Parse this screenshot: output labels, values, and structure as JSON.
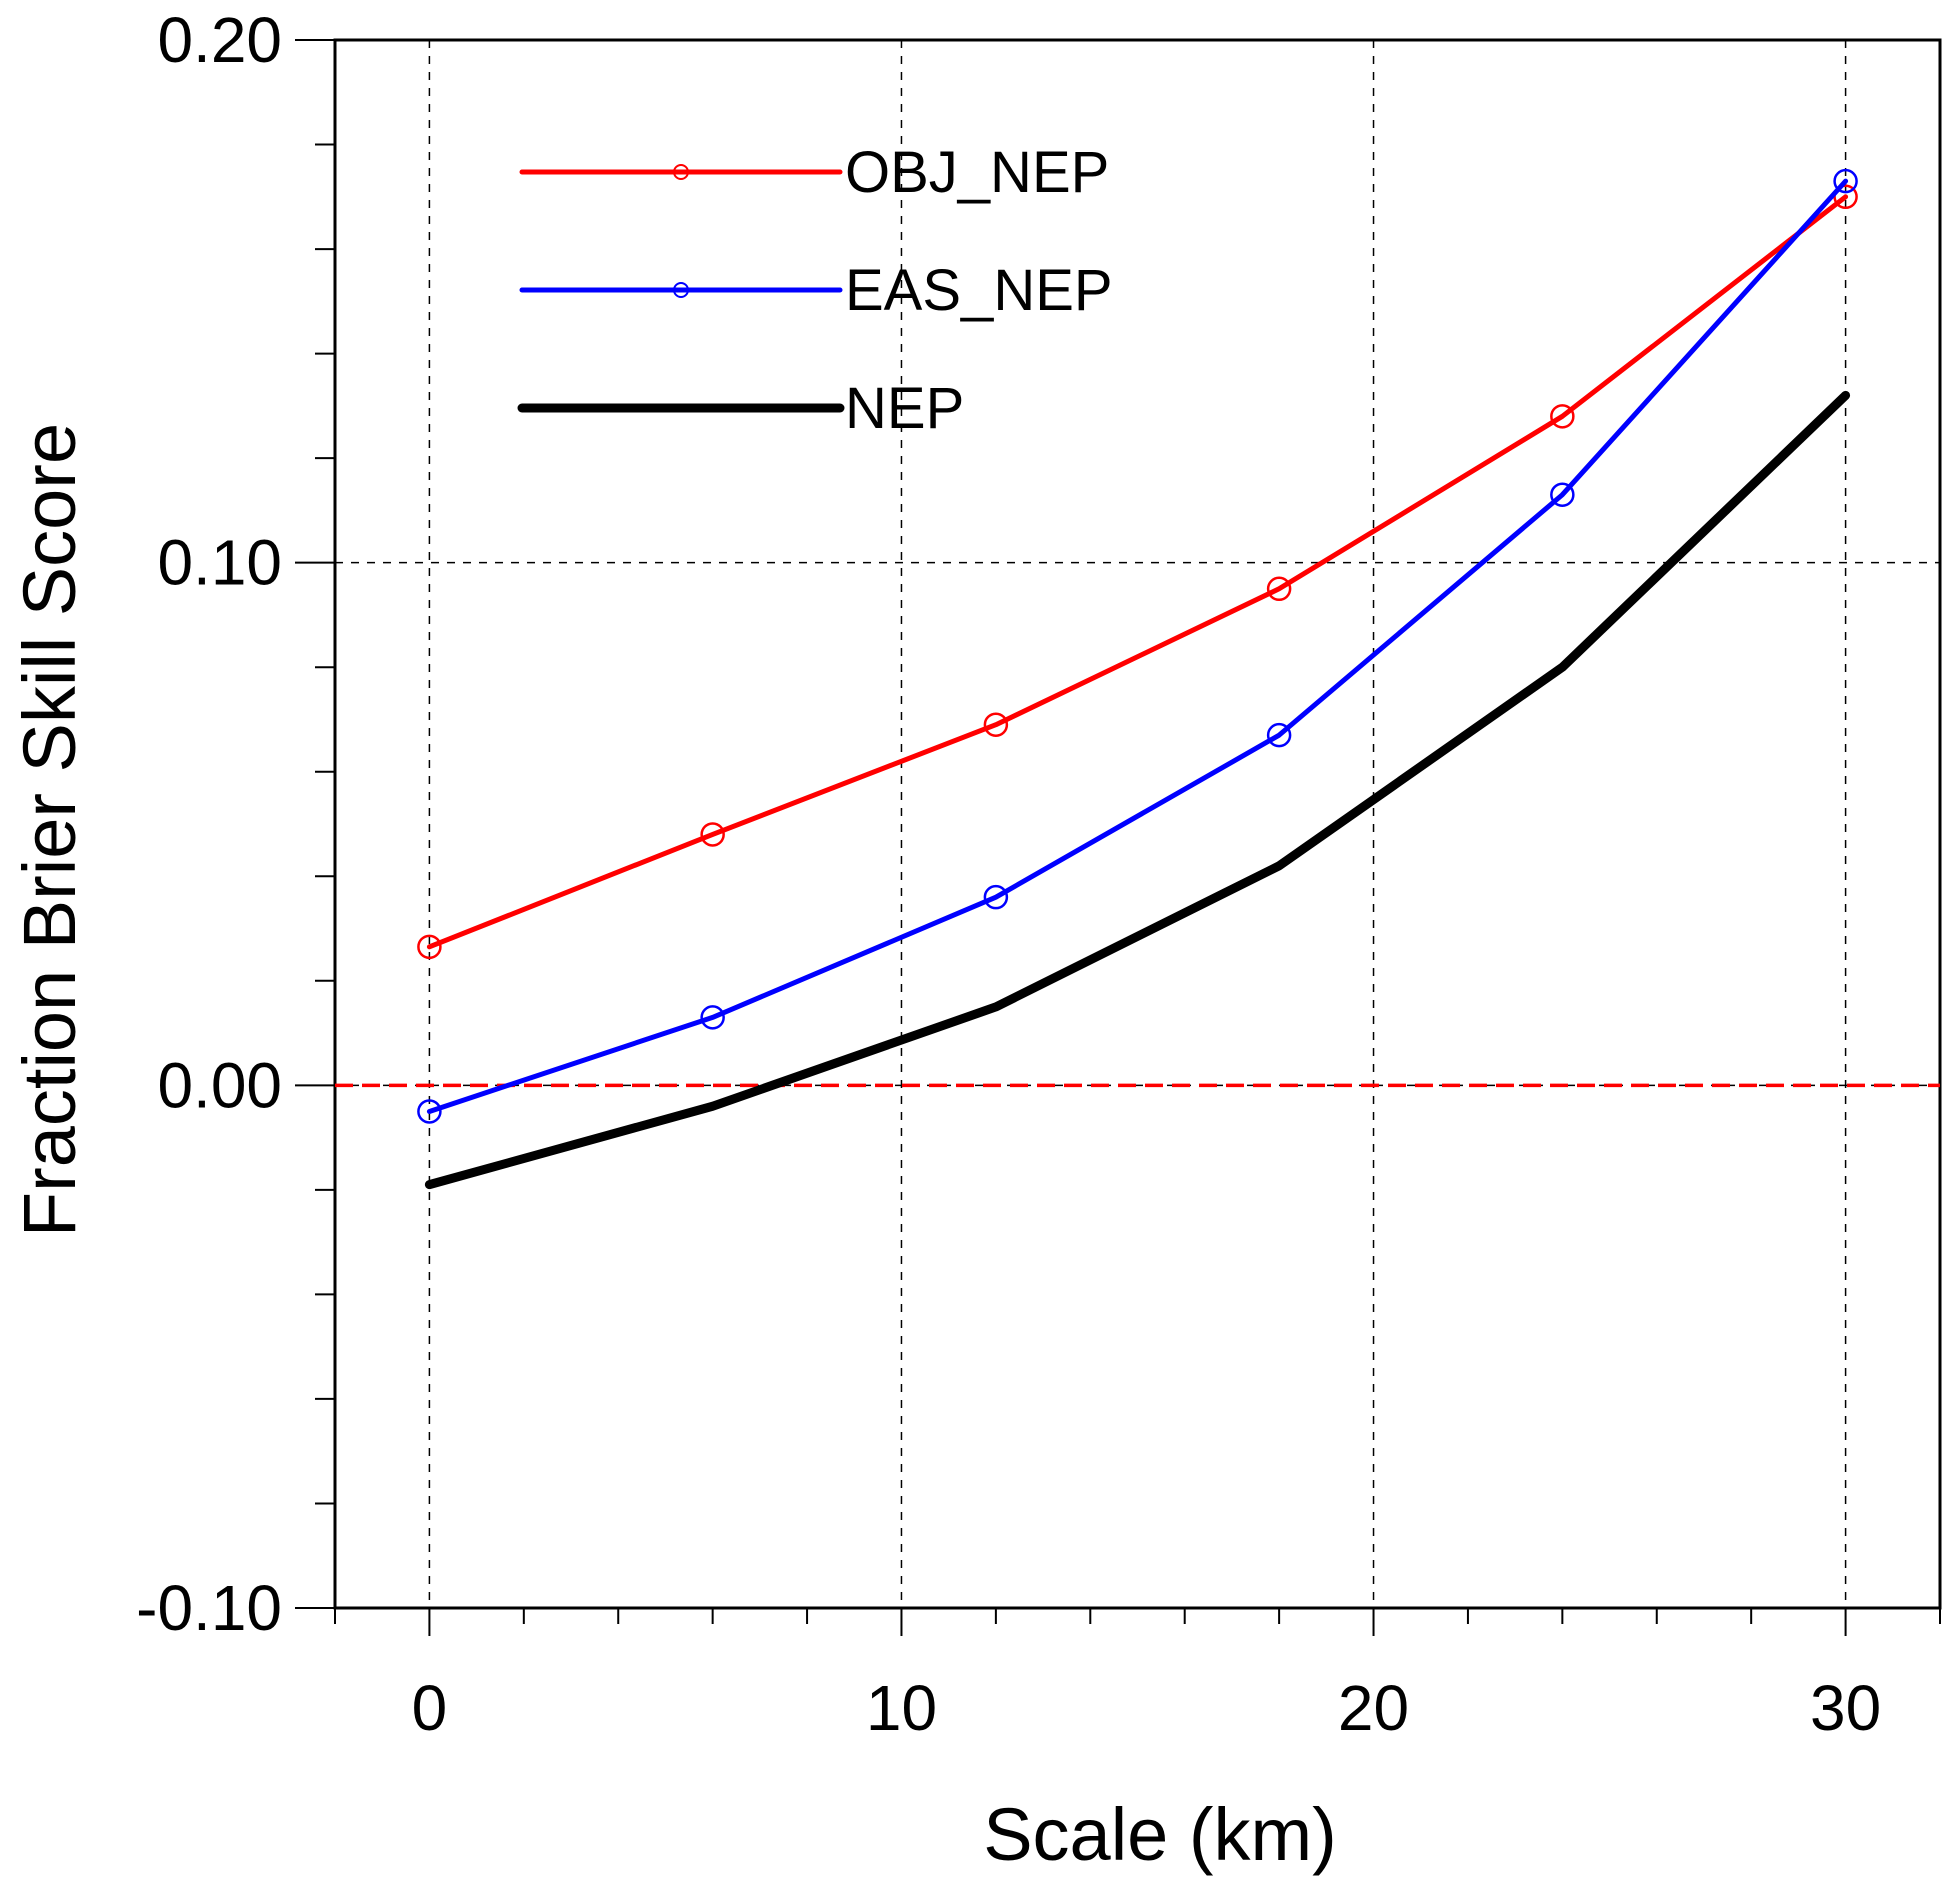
{
  "chart_data": {
    "type": "line",
    "title": "",
    "xlabel": "Scale (km)",
    "ylabel": "Fraction Brier Skill Score",
    "xlim": [
      -2,
      32
    ],
    "ylim": [
      -0.1,
      0.2
    ],
    "x_major_ticks": [
      0,
      10,
      20,
      30
    ],
    "x_major_tick_labels": [
      "0",
      "10",
      "20",
      "30"
    ],
    "x_minor_tick_step": 2,
    "y_major_ticks": [
      -0.1,
      0.0,
      0.1,
      0.2
    ],
    "y_major_tick_labels": [
      "-0.10",
      "0.00",
      "0.10",
      "0.20"
    ],
    "y_minor_tick_step": 0.02,
    "grid": true,
    "grid_style": "dashed",
    "reference_line": {
      "y": 0.0,
      "color": "#ff0000",
      "style": "dashed"
    },
    "legend_position": "top-left",
    "x": [
      0,
      6,
      12,
      18,
      24,
      30
    ],
    "series": [
      {
        "name": "OBJ_NEP",
        "color": "#ff0000",
        "marker": "circle",
        "values": [
          0.0265,
          0.048,
          0.069,
          0.095,
          0.128,
          0.17
        ]
      },
      {
        "name": "EAS_NEP",
        "color": "#0000ff",
        "marker": "circle",
        "values": [
          -0.005,
          0.013,
          0.036,
          0.067,
          0.113,
          0.173
        ]
      },
      {
        "name": "NEP",
        "color": "#000000",
        "marker": "none",
        "values": [
          -0.019,
          -0.004,
          0.015,
          0.042,
          0.08,
          0.132
        ]
      }
    ]
  }
}
